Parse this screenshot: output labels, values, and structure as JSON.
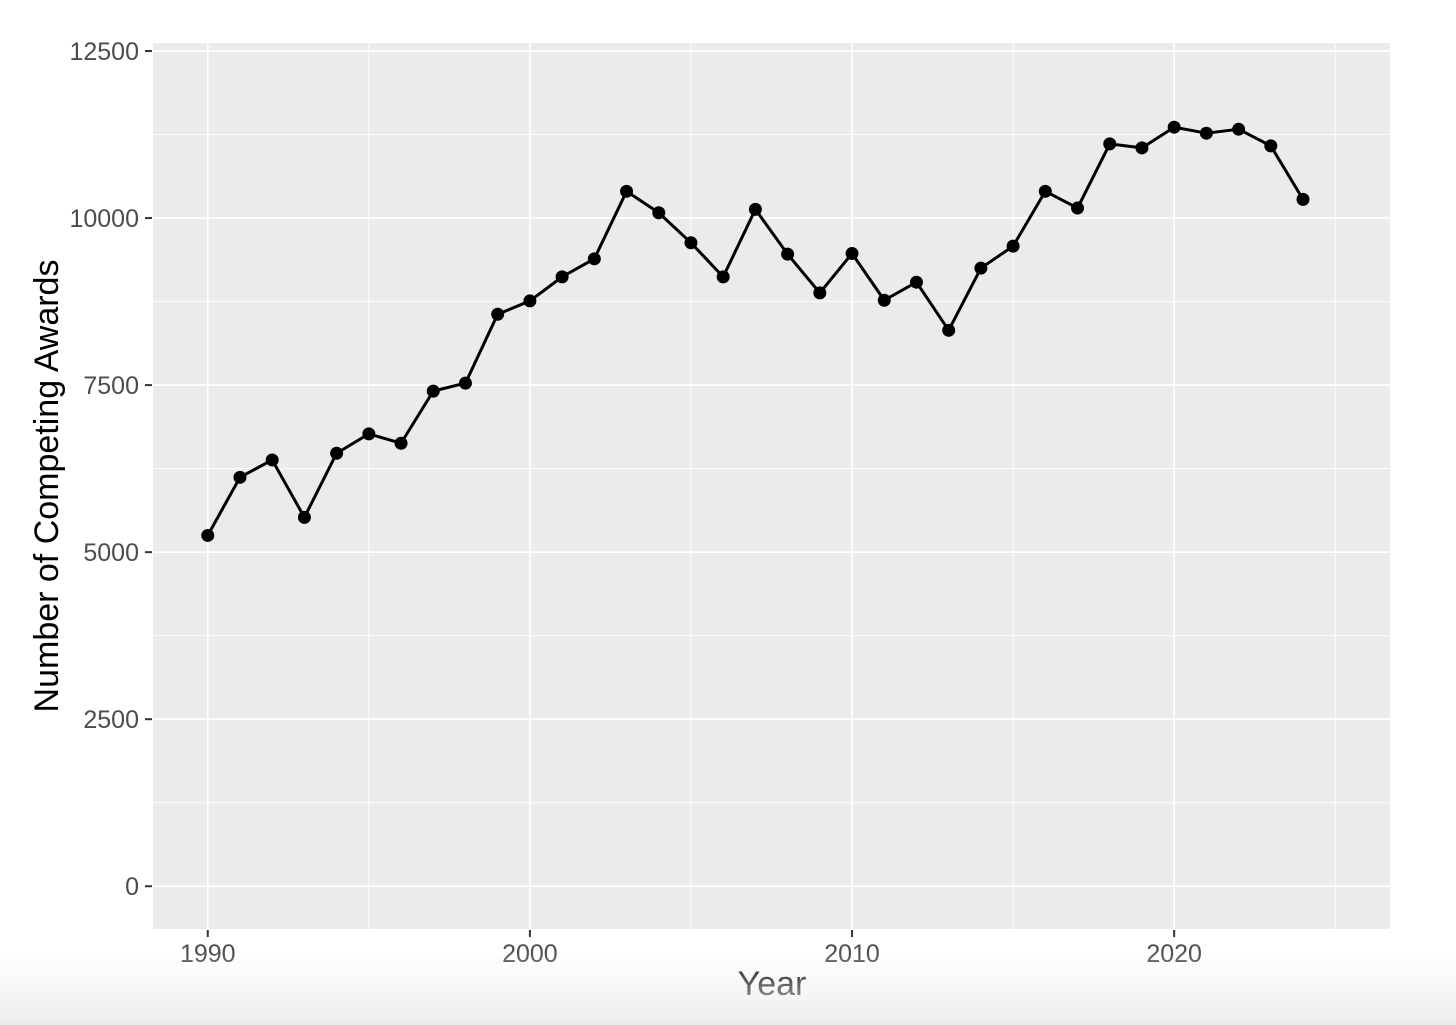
{
  "page": {
    "background_color": "#ffffff"
  },
  "chart_data": {
    "type": "line",
    "title": "",
    "xlabel": "Year",
    "ylabel": "Number of Competing Awards",
    "x": [
      1990,
      1991,
      1992,
      1993,
      1994,
      1995,
      1996,
      1997,
      1998,
      1999,
      2000,
      2001,
      2002,
      2003,
      2004,
      2005,
      2006,
      2007,
      2008,
      2009,
      2010,
      2011,
      2012,
      2013,
      2014,
      2015,
      2016,
      2017,
      2018,
      2019,
      2020,
      2021,
      2022,
      2023,
      2024
    ],
    "values": [
      5250,
      6120,
      6380,
      5520,
      6480,
      6770,
      6630,
      7410,
      7530,
      8560,
      8760,
      9120,
      9390,
      10400,
      10080,
      9630,
      9120,
      10130,
      9460,
      8880,
      9470,
      8770,
      9040,
      8320,
      9250,
      9580,
      10400,
      10150,
      11110,
      11050,
      11360,
      11270,
      11330,
      11080,
      10280
    ],
    "x_ticks": [
      1990,
      2000,
      2010,
      2020
    ],
    "x_tick_labels": [
      "1990",
      "2000",
      "2010",
      "2020"
    ],
    "x_minor_ticks": [
      1995,
      2005,
      2015,
      2025
    ],
    "y_ticks": [
      0,
      2500,
      5000,
      7500,
      10000,
      12500
    ],
    "y_tick_labels": [
      "0",
      "2500",
      "5000",
      "7500",
      "10000",
      "12500"
    ],
    "y_minor_ticks": [
      1250,
      3750,
      6250,
      8750,
      11250
    ],
    "xlim": [
      1988.3,
      2026.7
    ],
    "ylim": [
      -640,
      12620
    ],
    "grid": true,
    "legend": "none",
    "style": {
      "panel_background": "#ebebeb",
      "grid_color": "#ffffff",
      "line_color": "#000000",
      "point_color": "#000000",
      "tick_mark_color": "#333333",
      "tick_label_color": "#4d4d4d",
      "axis_title_color": "#000000"
    }
  }
}
